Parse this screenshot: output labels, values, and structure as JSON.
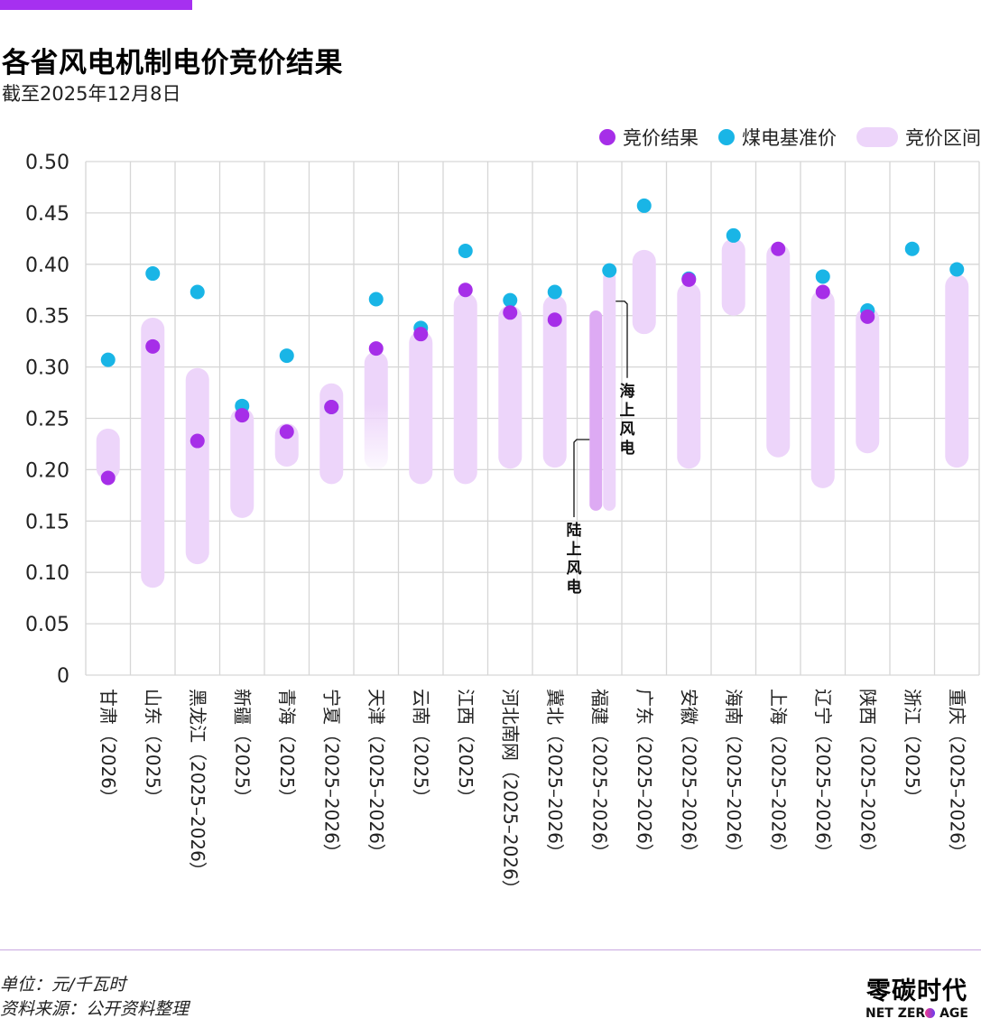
{
  "header": {
    "title": "各省风电机制电价竞价结果",
    "subtitle": "截至2025年12月8日"
  },
  "legend": [
    {
      "label": "竞价结果",
      "kind": "dot",
      "color": "#A62EE8"
    },
    {
      "label": "煤电基准价",
      "kind": "dot",
      "color": "#19B5E6"
    },
    {
      "label": "竞价区间",
      "kind": "pill",
      "color": "#EDD5FA"
    }
  ],
  "colors": {
    "accent": "#A630F0",
    "result": "#A62EE8",
    "benchmark": "#19B5E6",
    "range": "#EDD5FA",
    "range_onshore": "#DDAAF3",
    "grid": "#D6D6D6"
  },
  "chart_data": {
    "type": "range-dot",
    "title": "各省风电机制电价竞价结果",
    "subtitle": "截至2025年12月8日",
    "xlabel": "",
    "ylabel": "",
    "unit": "元/千瓦时",
    "ylim": [
      0,
      0.5
    ],
    "yticks": [
      "0",
      "0.05",
      "0.10",
      "0.15",
      "0.20",
      "0.25",
      "0.30",
      "0.35",
      "0.40",
      "0.45",
      "0.50"
    ],
    "ytick_values": [
      0,
      0.05,
      0.1,
      0.15,
      0.2,
      0.25,
      0.3,
      0.35,
      0.4,
      0.45,
      0.5
    ],
    "grid": true,
    "legend_position": "top-right",
    "categories": [
      "甘肃（2026）",
      "山东（2025）",
      "黑龙江（2025–2026）",
      "新疆（2025）",
      "青海（2025）",
      "宁夏（2025–2026）",
      "天津（2025–2026）",
      "云南（2025）",
      "江西（2025）",
      "河北南网（2025–2026）",
      "冀北（2025–2026）",
      "福建（2025–2026）",
      "广东（2025–2026）",
      "安徽（2025–2026）",
      "海南（2025–2026）",
      "上海（2025–2026）",
      "辽宁（2025–2026）",
      "陕西（2025–2026）",
      "浙江（2025）",
      "重庆（2025–2026）"
    ],
    "series": [
      {
        "name": "竞价结果",
        "values": [
          0.192,
          0.32,
          0.228,
          0.253,
          0.237,
          0.261,
          0.318,
          0.332,
          0.375,
          0.353,
          0.346,
          null,
          null,
          0.385,
          null,
          0.415,
          0.373,
          0.349,
          null,
          null
        ]
      },
      {
        "name": "煤电基准价",
        "values": [
          0.307,
          0.391,
          0.373,
          0.262,
          0.311,
          0.261,
          0.366,
          0.338,
          0.413,
          0.365,
          0.373,
          0.394,
          0.457,
          0.386,
          0.428,
          null,
          0.388,
          0.355,
          0.415,
          0.395
        ]
      },
      {
        "name": "竞价区间",
        "ranges": [
          [
            0.19,
            0.24
          ],
          [
            0.085,
            0.348
          ],
          [
            0.108,
            0.299
          ],
          [
            0.153,
            0.26
          ],
          [
            0.203,
            0.245
          ],
          [
            0.186,
            0.284
          ],
          [
            0.2,
            0.315
          ],
          [
            0.186,
            0.335
          ],
          [
            0.186,
            0.372
          ],
          [
            0.201,
            0.36
          ],
          [
            0.202,
            0.37
          ],
          null,
          [
            0.332,
            0.414
          ],
          [
            0.201,
            0.382
          ],
          [
            0.35,
            0.425
          ],
          [
            0.212,
            0.42
          ],
          [
            0.182,
            0.375
          ],
          [
            0.216,
            0.358
          ],
          null,
          [
            0.202,
            0.39
          ]
        ],
        "fade_bottom": [
          6
        ]
      }
    ],
    "split_ranges": {
      "category_index": 11,
      "bars": [
        {
          "label": "陆上风电",
          "range": [
            0.16,
            0.355
          ]
        },
        {
          "label": "海上风电",
          "range": [
            0.16,
            0.393
          ]
        }
      ]
    }
  },
  "footer": {
    "unit": "单位：元/千瓦时",
    "source": "资料来源：公开资料整理"
  },
  "logo": {
    "cn": "零碳时代",
    "en_left": "NET ZER",
    "en_right": " AGE"
  }
}
